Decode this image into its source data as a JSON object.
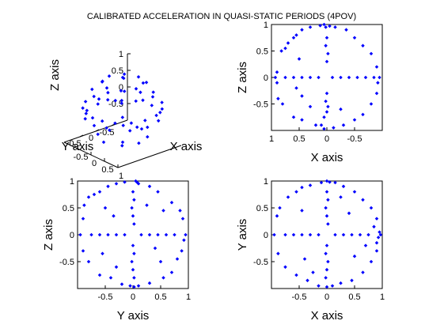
{
  "title": "CALIBRATED ACCELERATION IN QUASI-STATIC PERIODS (4POV)",
  "colors": {
    "points": "#0000ff",
    "axes": "#000000",
    "background": "#ffffff"
  },
  "chart_data": [
    {
      "type": "scatter",
      "view": "3d",
      "xlabel": "X axis",
      "ylabel": "Y axis",
      "zlabel": "Z axis",
      "x_ticks": [
        "-0.5",
        "0",
        "0.5",
        "1"
      ],
      "y_ticks": [
        "0.5",
        "0",
        "-0.5"
      ],
      "z_ticks": [
        "1",
        "0.5",
        "0",
        "-0.5"
      ],
      "xlim": [
        -1,
        1
      ],
      "ylim": [
        -1,
        1
      ],
      "zlim": [
        -1,
        1
      ]
    },
    {
      "type": "scatter",
      "xlabel": "X axis",
      "ylabel": "Z axis",
      "x_ticks": [
        "1",
        "0.5",
        "0",
        "-0.5"
      ],
      "y_ticks": [
        "1",
        "0.5",
        "0",
        "-0.5"
      ],
      "xlim": [
        1,
        -1
      ],
      "ylim": [
        -1,
        1
      ],
      "x_reversed": true
    },
    {
      "type": "scatter",
      "xlabel": "Y axis",
      "ylabel": "Z axis",
      "x_ticks": [
        "-0.5",
        "0",
        "0.5",
        "1"
      ],
      "y_ticks": [
        "1",
        "0.5",
        "0",
        "-0.5"
      ],
      "xlim": [
        -1,
        1
      ],
      "ylim": [
        -1,
        1
      ]
    },
    {
      "type": "scatter",
      "xlabel": "X axis",
      "ylabel": "Y axis",
      "x_ticks": [
        "-0.5",
        "0",
        "0.5",
        "1"
      ],
      "y_ticks": [
        "1",
        "0.5",
        "0",
        "-0.5"
      ],
      "xlim": [
        -1,
        1
      ],
      "ylim": [
        -1,
        1
      ]
    }
  ],
  "points_xz": [
    [
      0.93,
      0.0
    ],
    [
      0.9,
      0.1
    ],
    [
      0.9,
      -0.1
    ],
    [
      0.82,
      0.5
    ],
    [
      0.75,
      0.55
    ],
    [
      0.7,
      0.65
    ],
    [
      0.6,
      0.75
    ],
    [
      0.55,
      0.8
    ],
    [
      0.45,
      0.9
    ],
    [
      0.3,
      0.95
    ],
    [
      0.12,
      0.98
    ],
    [
      0.05,
      1.0
    ],
    [
      0.02,
      0.95
    ],
    [
      -0.05,
      0.97
    ],
    [
      -0.15,
      0.95
    ],
    [
      -0.35,
      0.9
    ],
    [
      -0.5,
      0.75
    ],
    [
      -0.65,
      0.6
    ],
    [
      -0.8,
      0.45
    ],
    [
      -0.9,
      0.2
    ],
    [
      -0.95,
      0.0
    ],
    [
      -0.92,
      -0.1
    ],
    [
      -0.9,
      -0.3
    ],
    [
      -0.8,
      -0.5
    ],
    [
      -0.65,
      -0.7
    ],
    [
      -0.5,
      -0.8
    ],
    [
      -0.3,
      -0.9
    ],
    [
      -0.12,
      -0.95
    ],
    [
      0.05,
      -0.97
    ],
    [
      0.1,
      -0.9
    ],
    [
      0.2,
      -0.9
    ],
    [
      0.45,
      -0.8
    ],
    [
      0.6,
      -0.75
    ],
    [
      0.8,
      -0.5
    ],
    [
      0.88,
      -0.4
    ],
    [
      0.75,
      0.0
    ],
    [
      0.6,
      0.0
    ],
    [
      0.45,
      0.0
    ],
    [
      0.3,
      0.0
    ],
    [
      0.15,
      0.0
    ],
    [
      -0.1,
      0.0
    ],
    [
      -0.25,
      0.0
    ],
    [
      -0.4,
      0.0
    ],
    [
      -0.55,
      0.0
    ],
    [
      -0.7,
      0.0
    ],
    [
      -0.85,
      0.0
    ],
    [
      0.0,
      0.75
    ],
    [
      0.02,
      0.6
    ],
    [
      -0.02,
      0.45
    ],
    [
      0.0,
      0.3
    ],
    [
      0.0,
      -0.3
    ],
    [
      0.02,
      -0.45
    ],
    [
      -0.02,
      -0.55
    ],
    [
      0.0,
      -0.65
    ],
    [
      0.05,
      -0.75
    ],
    [
      0.5,
      0.35
    ],
    [
      0.45,
      -0.35
    ],
    [
      -0.25,
      -0.6
    ],
    [
      0.3,
      -0.55
    ],
    [
      0.55,
      -0.2
    ]
  ],
  "points_yz": [
    [
      -0.95,
      0.0
    ],
    [
      -0.9,
      0.3
    ],
    [
      -0.88,
      0.55
    ],
    [
      -0.8,
      0.7
    ],
    [
      -0.7,
      0.75
    ],
    [
      -0.6,
      0.8
    ],
    [
      -0.45,
      0.9
    ],
    [
      -0.3,
      0.95
    ],
    [
      -0.15,
      0.98
    ],
    [
      0.05,
      1.0
    ],
    [
      0.08,
      0.97
    ],
    [
      0.1,
      0.95
    ],
    [
      0.3,
      0.9
    ],
    [
      0.45,
      0.8
    ],
    [
      0.7,
      0.6
    ],
    [
      0.85,
      0.45
    ],
    [
      0.9,
      0.3
    ],
    [
      0.95,
      0.0
    ],
    [
      0.92,
      -0.1
    ],
    [
      0.88,
      -0.3
    ],
    [
      0.8,
      -0.45
    ],
    [
      0.7,
      -0.7
    ],
    [
      0.55,
      -0.8
    ],
    [
      0.3,
      -0.9
    ],
    [
      0.1,
      -0.95
    ],
    [
      0.02,
      -0.97
    ],
    [
      -0.05,
      -0.95
    ],
    [
      -0.2,
      -0.92
    ],
    [
      -0.4,
      -0.8
    ],
    [
      -0.6,
      -0.75
    ],
    [
      -0.8,
      -0.5
    ],
    [
      -0.9,
      -0.3
    ],
    [
      -0.75,
      0.0
    ],
    [
      -0.6,
      0.0
    ],
    [
      -0.45,
      0.0
    ],
    [
      -0.3,
      0.0
    ],
    [
      -0.15,
      0.0
    ],
    [
      0.15,
      0.0
    ],
    [
      0.3,
      0.0
    ],
    [
      0.45,
      0.0
    ],
    [
      0.6,
      0.0
    ],
    [
      0.75,
      0.0
    ],
    [
      0.0,
      0.8
    ],
    [
      0.02,
      0.65
    ],
    [
      -0.02,
      0.5
    ],
    [
      0.0,
      0.35
    ],
    [
      0.02,
      0.2
    ],
    [
      0.0,
      -0.2
    ],
    [
      0.02,
      -0.35
    ],
    [
      -0.02,
      -0.5
    ],
    [
      0.0,
      -0.65
    ],
    [
      0.02,
      -0.8
    ],
    [
      -0.5,
      0.5
    ],
    [
      0.55,
      0.45
    ],
    [
      -0.55,
      -0.35
    ],
    [
      0.5,
      -0.5
    ],
    [
      0.4,
      -0.25
    ],
    [
      -0.35,
      0.35
    ],
    [
      0.25,
      0.55
    ],
    [
      -0.3,
      -0.6
    ]
  ],
  "points_xy": [
    [
      -0.95,
      0.0
    ],
    [
      -0.9,
      0.35
    ],
    [
      -0.85,
      0.5
    ],
    [
      -0.7,
      0.7
    ],
    [
      -0.55,
      0.8
    ],
    [
      -0.45,
      0.88
    ],
    [
      -0.3,
      0.92
    ],
    [
      -0.1,
      0.97
    ],
    [
      0.0,
      1.0
    ],
    [
      0.05,
      0.98
    ],
    [
      0.15,
      0.97
    ],
    [
      0.3,
      0.9
    ],
    [
      0.5,
      0.8
    ],
    [
      0.65,
      0.65
    ],
    [
      0.8,
      0.5
    ],
    [
      0.9,
      0.3
    ],
    [
      0.95,
      0.05
    ],
    [
      0.97,
      0.0
    ],
    [
      0.93,
      -0.05
    ],
    [
      0.9,
      -0.3
    ],
    [
      0.8,
      -0.5
    ],
    [
      0.65,
      -0.7
    ],
    [
      0.45,
      -0.85
    ],
    [
      0.25,
      -0.9
    ],
    [
      0.1,
      -0.95
    ],
    [
      0.0,
      -0.97
    ],
    [
      -0.15,
      -0.95
    ],
    [
      -0.35,
      -0.85
    ],
    [
      -0.55,
      -0.75
    ],
    [
      -0.75,
      -0.6
    ],
    [
      -0.88,
      -0.35
    ],
    [
      -0.75,
      0.0
    ],
    [
      -0.6,
      0.0
    ],
    [
      -0.45,
      0.0
    ],
    [
      -0.3,
      0.0
    ],
    [
      -0.15,
      0.0
    ],
    [
      0.15,
      0.0
    ],
    [
      0.3,
      0.0
    ],
    [
      0.45,
      0.0
    ],
    [
      0.6,
      0.0
    ],
    [
      0.75,
      0.0
    ],
    [
      0.0,
      0.8
    ],
    [
      0.02,
      0.65
    ],
    [
      -0.02,
      0.5
    ],
    [
      0.0,
      0.35
    ],
    [
      0.02,
      0.2
    ],
    [
      0.0,
      -0.2
    ],
    [
      -0.02,
      -0.35
    ],
    [
      0.02,
      -0.5
    ],
    [
      0.0,
      -0.65
    ],
    [
      -0.02,
      -0.8
    ],
    [
      0.9,
      -0.15
    ],
    [
      0.85,
      0.15
    ],
    [
      -0.45,
      0.45
    ],
    [
      0.4,
      0.4
    ],
    [
      -0.4,
      -0.45
    ],
    [
      0.5,
      -0.4
    ],
    [
      0.25,
      0.7
    ],
    [
      -0.25,
      -0.7
    ],
    [
      0.7,
      -0.2
    ]
  ],
  "points_3d": [
    [
      0.0,
      0.95,
      0.1
    ],
    [
      0.3,
      0.9,
      0.1
    ],
    [
      0.6,
      0.75,
      0.1
    ],
    [
      0.85,
      0.45,
      0.1
    ],
    [
      0.95,
      0.1,
      0.1
    ],
    [
      0.9,
      -0.3,
      0.1
    ],
    [
      0.7,
      -0.65,
      0.1
    ],
    [
      0.4,
      -0.9,
      0.1
    ],
    [
      0.0,
      -0.95,
      0.1
    ],
    [
      -0.4,
      -0.9,
      0.1
    ],
    [
      -0.7,
      -0.65,
      0.1
    ],
    [
      -0.9,
      -0.3,
      0.1
    ],
    [
      -0.95,
      0.1,
      0.1
    ],
    [
      -0.85,
      0.45,
      0.1
    ],
    [
      -0.6,
      0.75,
      0.1
    ],
    [
      -0.3,
      0.9,
      0.1
    ],
    [
      0.0,
      0.9,
      -0.15
    ],
    [
      0.45,
      0.8,
      -0.15
    ],
    [
      0.8,
      0.45,
      -0.15
    ],
    [
      0.92,
      0.0,
      -0.15
    ],
    [
      0.8,
      -0.45,
      -0.15
    ],
    [
      0.45,
      -0.8,
      -0.15
    ],
    [
      0.0,
      -0.92,
      -0.15
    ],
    [
      -0.45,
      -0.8,
      -0.15
    ],
    [
      -0.8,
      -0.45,
      -0.15
    ],
    [
      -0.92,
      0.0,
      -0.15
    ],
    [
      -0.8,
      0.45,
      -0.15
    ],
    [
      -0.45,
      0.8,
      -0.15
    ],
    [
      0.0,
      0.5,
      0.85
    ],
    [
      0.35,
      0.35,
      0.85
    ],
    [
      0.5,
      0.0,
      0.85
    ],
    [
      0.35,
      -0.35,
      0.85
    ],
    [
      0.0,
      -0.5,
      0.85
    ],
    [
      -0.35,
      -0.35,
      0.85
    ],
    [
      -0.5,
      0.0,
      0.85
    ],
    [
      -0.35,
      0.35,
      0.85
    ],
    [
      0.0,
      0.75,
      0.6
    ],
    [
      0.55,
      0.5,
      0.6
    ],
    [
      0.75,
      0.0,
      0.6
    ],
    [
      0.55,
      -0.5,
      0.6
    ],
    [
      0.0,
      -0.75,
      0.6
    ],
    [
      -0.55,
      -0.5,
      0.6
    ],
    [
      -0.75,
      0.0,
      0.6
    ],
    [
      -0.55,
      0.5,
      0.6
    ],
    [
      0.0,
      0.6,
      -0.75
    ],
    [
      0.45,
      0.4,
      -0.75
    ],
    [
      0.6,
      0.0,
      -0.75
    ],
    [
      0.45,
      -0.4,
      -0.75
    ],
    [
      0.0,
      -0.6,
      -0.75
    ],
    [
      -0.45,
      -0.4,
      -0.75
    ],
    [
      -0.6,
      0.0,
      -0.75
    ],
    [
      -0.45,
      0.4,
      -0.75
    ],
    [
      0.0,
      0.0,
      1.0
    ],
    [
      0.0,
      0.0,
      -0.95
    ],
    [
      0.2,
      0.2,
      0.45
    ],
    [
      -0.2,
      0.3,
      0.35
    ],
    [
      0.3,
      -0.2,
      -0.45
    ],
    [
      -0.3,
      -0.25,
      -0.4
    ]
  ]
}
